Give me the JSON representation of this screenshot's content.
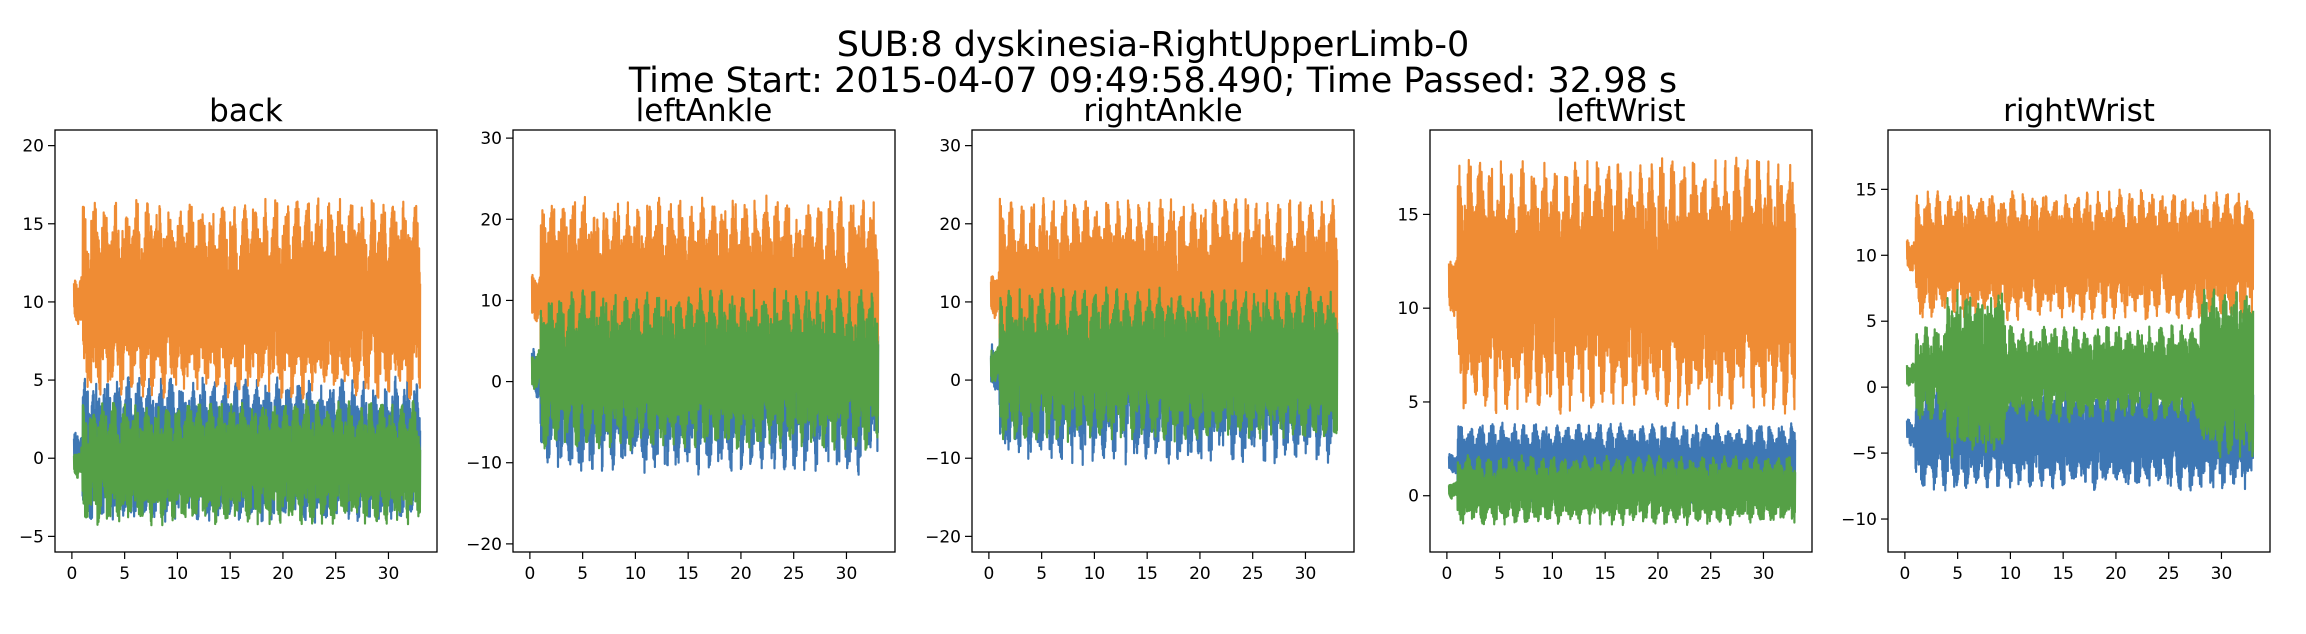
{
  "figure": {
    "title_line1": "SUB:8 dyskinesia-RightUpperLimb-0",
    "title_line2": "Time Start: 2015-04-07 09:49:58.490; Time Passed: 32.98 s"
  },
  "colors": {
    "series1": "#3e77b4",
    "series2": "#ef8c34",
    "series3": "#55a046"
  },
  "chart_data": [
    {
      "type": "line",
      "title": "back",
      "xlim": [
        -1.6,
        34.6
      ],
      "ylim": [
        -6.0,
        21.0
      ],
      "xticks": [
        0,
        5,
        10,
        15,
        20,
        25,
        30
      ],
      "yticks": [
        -5,
        0,
        5,
        10,
        15,
        20
      ],
      "series": [
        {
          "color": "#3e77b4",
          "mean": 0.5,
          "amp": 3.8,
          "mid_amp": 5.0
        },
        {
          "color": "#ef8c34",
          "mean": 10.2,
          "amp": 5.2,
          "mid_amp": 7.0
        },
        {
          "color": "#55a046",
          "mean": -0.3,
          "amp": 3.2,
          "mid_amp": 4.0
        }
      ]
    },
    {
      "type": "line",
      "title": "leftAnkle",
      "xlim": [
        -1.6,
        34.6
      ],
      "ylim": [
        -21.0,
        31.0
      ],
      "xticks": [
        0,
        5,
        10,
        15,
        20,
        25,
        30
      ],
      "yticks": [
        -20,
        -10,
        0,
        10,
        20,
        30
      ],
      "series": [
        {
          "color": "#3e77b4",
          "mean": 1.0,
          "amp": 10.0,
          "mid_amp": 13.0
        },
        {
          "color": "#ef8c34",
          "mean": 10.5,
          "amp": 10.0,
          "mid_amp": 14.0
        },
        {
          "color": "#55a046",
          "mean": 1.5,
          "amp": 8.0,
          "mid_amp": 11.0
        }
      ]
    },
    {
      "type": "line",
      "title": "rightAnkle",
      "xlim": [
        -1.6,
        34.6
      ],
      "ylim": [
        -22.0,
        32.0
      ],
      "xticks": [
        0,
        5,
        10,
        15,
        20,
        25,
        30
      ],
      "yticks": [
        -20,
        -10,
        0,
        10,
        20,
        30
      ],
      "series": [
        {
          "color": "#3e77b4",
          "mean": 1.5,
          "amp": 10.0,
          "mid_amp": 14.0
        },
        {
          "color": "#ef8c34",
          "mean": 11.0,
          "amp": 10.0,
          "mid_amp": 14.0
        },
        {
          "color": "#55a046",
          "mean": 2.0,
          "amp": 8.0,
          "mid_amp": 10.0
        }
      ]
    },
    {
      "type": "line",
      "title": "leftWrist",
      "xlim": [
        -1.6,
        34.6
      ],
      "ylim": [
        -3.0,
        19.5
      ],
      "xticks": [
        0,
        5,
        10,
        15,
        20,
        25,
        30
      ],
      "yticks": [
        0,
        5,
        10,
        15
      ],
      "series": [
        {
          "color": "#3e77b4",
          "mean": 1.7,
          "amp": 1.8,
          "mid_amp": 2.5
        },
        {
          "color": "#ef8c34",
          "mean": 11.2,
          "amp": 5.5,
          "mid_amp": 7.0
        },
        {
          "color": "#55a046",
          "mean": 0.3,
          "amp": 1.5,
          "mid_amp": 2.0
        }
      ]
    },
    {
      "type": "line",
      "title": "rightWrist",
      "xlim": [
        -1.6,
        34.6
      ],
      "ylim": [
        -12.5,
        19.5
      ],
      "xticks": [
        0,
        5,
        10,
        15,
        20,
        25,
        30
      ],
      "yticks": [
        -10,
        -5,
        0,
        5,
        10,
        15
      ],
      "series": [
        {
          "color": "#3e77b4",
          "mean": -3.5,
          "amp": 3.5,
          "mid_amp": 6.0
        },
        {
          "color": "#ef8c34",
          "mean": 10.0,
          "amp": 4.0,
          "mid_amp": 6.0
        },
        {
          "color": "#55a046",
          "mean": 1.0,
          "amp": 3.0,
          "mid_amp": 6.5
        }
      ]
    }
  ]
}
